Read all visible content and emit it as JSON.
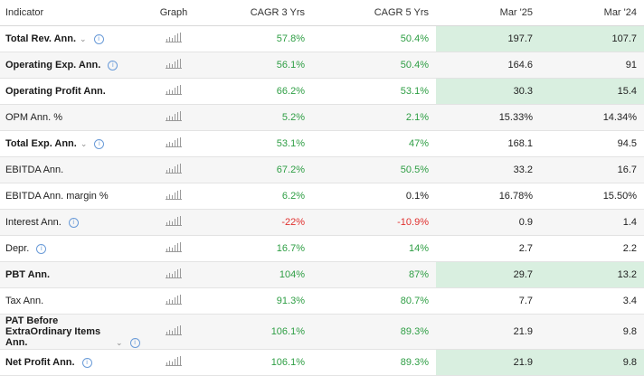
{
  "headers": {
    "indicator": "Indicator",
    "graph": "Graph",
    "cagr3": "CAGR 3 Yrs",
    "cagr5": "CAGR 5 Yrs",
    "mar25": "Mar '25",
    "mar24": "Mar '24"
  },
  "icons": {
    "expand": "chevron-down-icon",
    "info": "info-icon",
    "graph": "bar-chart-icon"
  },
  "colors": {
    "positive": "#2e9e44",
    "negative": "#e0302e",
    "highlight": "#d9efe0"
  },
  "rows": [
    {
      "label": "Total Rev. Ann.",
      "bold": true,
      "chevron": true,
      "info": true,
      "cagr3": "57.8%",
      "cagr5": "50.4%",
      "mar25": "197.7",
      "mar24": "107.7",
      "cagr3_sign": "pos",
      "cagr5_sign": "pos",
      "highlight": true
    },
    {
      "label": "Operating Exp. Ann.",
      "bold": true,
      "chevron": false,
      "info": true,
      "cagr3": "56.1%",
      "cagr5": "50.4%",
      "mar25": "164.6",
      "mar24": "91",
      "cagr3_sign": "pos",
      "cagr5_sign": "pos",
      "highlight": false
    },
    {
      "label": "Operating Profit Ann.",
      "bold": true,
      "chevron": false,
      "info": false,
      "cagr3": "66.2%",
      "cagr5": "53.1%",
      "mar25": "30.3",
      "mar24": "15.4",
      "cagr3_sign": "pos",
      "cagr5_sign": "pos",
      "highlight": true
    },
    {
      "label": "OPM Ann. %",
      "bold": false,
      "chevron": false,
      "info": false,
      "cagr3": "5.2%",
      "cagr5": "2.1%",
      "mar25": "15.33%",
      "mar24": "14.34%",
      "cagr3_sign": "pos",
      "cagr5_sign": "pos",
      "highlight": false
    },
    {
      "label": "Total Exp. Ann.",
      "bold": true,
      "chevron": true,
      "info": true,
      "cagr3": "53.1%",
      "cagr5": "47%",
      "mar25": "168.1",
      "mar24": "94.5",
      "cagr3_sign": "pos",
      "cagr5_sign": "pos",
      "highlight": false
    },
    {
      "label": "EBITDA Ann.",
      "bold": false,
      "chevron": false,
      "info": false,
      "cagr3": "67.2%",
      "cagr5": "50.5%",
      "mar25": "33.2",
      "mar24": "16.7",
      "cagr3_sign": "pos",
      "cagr5_sign": "pos",
      "highlight": false
    },
    {
      "label": "EBITDA Ann. margin %",
      "bold": false,
      "chevron": false,
      "info": false,
      "cagr3": "6.2%",
      "cagr5": "0.1%",
      "mar25": "16.78%",
      "mar24": "15.50%",
      "cagr3_sign": "pos",
      "cagr5_sign": "none",
      "highlight": false
    },
    {
      "label": "Interest Ann.",
      "bold": false,
      "chevron": false,
      "info": true,
      "cagr3": "-22%",
      "cagr5": "-10.9%",
      "mar25": "0.9",
      "mar24": "1.4",
      "cagr3_sign": "neg",
      "cagr5_sign": "neg",
      "highlight": false
    },
    {
      "label": "Depr.",
      "bold": false,
      "chevron": false,
      "info": true,
      "cagr3": "16.7%",
      "cagr5": "14%",
      "mar25": "2.7",
      "mar24": "2.2",
      "cagr3_sign": "pos",
      "cagr5_sign": "pos",
      "highlight": false
    },
    {
      "label": "PBT Ann.",
      "bold": true,
      "chevron": false,
      "info": false,
      "cagr3": "104%",
      "cagr5": "87%",
      "mar25": "29.7",
      "mar24": "13.2",
      "cagr3_sign": "pos",
      "cagr5_sign": "pos",
      "highlight": true
    },
    {
      "label": "Tax Ann.",
      "bold": false,
      "chevron": false,
      "info": false,
      "cagr3": "91.3%",
      "cagr5": "80.7%",
      "mar25": "7.7",
      "mar24": "3.4",
      "cagr3_sign": "pos",
      "cagr5_sign": "pos",
      "highlight": false
    },
    {
      "label": "PAT Before ExtraOrdinary Items Ann.",
      "bold": true,
      "chevron": true,
      "info": true,
      "multi": true,
      "cagr3": "106.1%",
      "cagr5": "89.3%",
      "mar25": "21.9",
      "mar24": "9.8",
      "cagr3_sign": "pos",
      "cagr5_sign": "pos",
      "highlight": false
    },
    {
      "label": "Net Profit Ann.",
      "bold": true,
      "chevron": false,
      "info": true,
      "cagr3": "106.1%",
      "cagr5": "89.3%",
      "mar25": "21.9",
      "mar24": "9.8",
      "cagr3_sign": "pos",
      "cagr5_sign": "pos",
      "highlight": true
    }
  ]
}
